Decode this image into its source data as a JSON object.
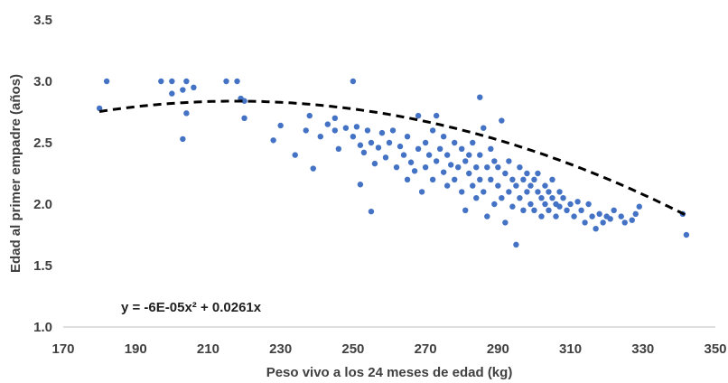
{
  "chart_data": {
    "type": "scatter",
    "xlabel": "Peso vivo a los 24 meses de edad (kg)",
    "ylabel": "Edad al primer empadre (años)",
    "xlim": [
      170,
      350
    ],
    "ylim": [
      1.0,
      3.5
    ],
    "xticks": [
      "170",
      "190",
      "210",
      "230",
      "250",
      "270",
      "290",
      "310",
      "330",
      "350"
    ],
    "yticks": [
      "1.0",
      "1.5",
      "2.0",
      "2.5",
      "3.0",
      "3.5"
    ],
    "grid": false,
    "point_color": "#4472C4",
    "trendline": {
      "equation_label": "y = -6E-05x² + 0.0261x",
      "a": -6e-05,
      "b": 0.0261,
      "x_range": [
        180,
        342
      ],
      "style": "dashed",
      "color": "#000000"
    },
    "series": [
      {
        "points": [
          [
            180,
            2.78
          ],
          [
            182,
            3.0
          ],
          [
            197,
            3.0
          ],
          [
            200,
            3.0
          ],
          [
            200,
            2.9
          ],
          [
            203,
            2.93
          ],
          [
            204,
            3.0
          ],
          [
            206,
            2.95
          ],
          [
            203,
            2.53
          ],
          [
            204,
            2.74
          ],
          [
            215,
            3.0
          ],
          [
            218,
            3.0
          ],
          [
            219,
            2.86
          ],
          [
            220,
            2.84
          ],
          [
            220,
            2.7
          ],
          [
            228,
            2.52
          ],
          [
            230,
            2.64
          ],
          [
            234,
            2.4
          ],
          [
            237,
            2.6
          ],
          [
            238,
            2.72
          ],
          [
            239,
            2.29
          ],
          [
            241,
            2.55
          ],
          [
            243,
            2.65
          ],
          [
            245,
            2.6
          ],
          [
            245,
            2.7
          ],
          [
            246,
            2.45
          ],
          [
            248,
            2.62
          ],
          [
            250,
            3.0
          ],
          [
            250,
            2.55
          ],
          [
            251,
            2.63
          ],
          [
            252,
            2.48
          ],
          [
            252,
            2.16
          ],
          [
            253,
            2.42
          ],
          [
            254,
            2.6
          ],
          [
            255,
            1.94
          ],
          [
            255,
            2.5
          ],
          [
            256,
            2.33
          ],
          [
            257,
            2.46
          ],
          [
            258,
            2.58
          ],
          [
            259,
            2.38
          ],
          [
            260,
            2.5
          ],
          [
            261,
            2.6
          ],
          [
            262,
            2.3
          ],
          [
            263,
            2.47
          ],
          [
            264,
            2.4
          ],
          [
            265,
            2.55
          ],
          [
            265,
            2.2
          ],
          [
            266,
            2.34
          ],
          [
            267,
            2.27
          ],
          [
            268,
            2.72
          ],
          [
            268,
            2.45
          ],
          [
            269,
            2.1
          ],
          [
            270,
            2.5
          ],
          [
            270,
            2.3
          ],
          [
            271,
            2.4
          ],
          [
            272,
            2.6
          ],
          [
            272,
            2.2
          ],
          [
            273,
            2.72
          ],
          [
            273,
            2.35
          ],
          [
            274,
            2.45
          ],
          [
            275,
            2.26
          ],
          [
            275,
            2.55
          ],
          [
            276,
            2.4
          ],
          [
            276,
            2.15
          ],
          [
            277,
            2.32
          ],
          [
            278,
            2.5
          ],
          [
            278,
            2.2
          ],
          [
            279,
            2.3
          ],
          [
            280,
            2.45
          ],
          [
            280,
            2.1
          ],
          [
            281,
            2.35
          ],
          [
            281,
            1.95
          ],
          [
            282,
            2.25
          ],
          [
            282,
            2.4
          ],
          [
            283,
            2.15
          ],
          [
            283,
            2.5
          ],
          [
            284,
            2.3
          ],
          [
            284,
            2.05
          ],
          [
            285,
            2.87
          ],
          [
            285,
            2.2
          ],
          [
            285,
            2.4
          ],
          [
            286,
            2.62
          ],
          [
            286,
            2.1
          ],
          [
            287,
            2.3
          ],
          [
            287,
            1.9
          ],
          [
            288,
            2.2
          ],
          [
            288,
            2.45
          ],
          [
            289,
            2.0
          ],
          [
            289,
            2.35
          ],
          [
            290,
            2.15
          ],
          [
            290,
            2.3
          ],
          [
            291,
            2.68
          ],
          [
            291,
            2.05
          ],
          [
            292,
            2.25
          ],
          [
            292,
            1.85
          ],
          [
            293,
            2.1
          ],
          [
            293,
            2.35
          ],
          [
            294,
            2.2
          ],
          [
            294,
            1.98
          ],
          [
            295,
            1.67
          ],
          [
            295,
            2.15
          ],
          [
            296,
            2.3
          ],
          [
            296,
            2.05
          ],
          [
            297,
            2.2
          ],
          [
            297,
            1.95
          ],
          [
            298,
            2.1
          ],
          [
            298,
            2.25
          ],
          [
            299,
            2.0
          ],
          [
            299,
            2.15
          ],
          [
            300,
            2.2
          ],
          [
            300,
            1.95
          ],
          [
            301,
            2.1
          ],
          [
            301,
            2.25
          ],
          [
            302,
            2.05
          ],
          [
            302,
            1.9
          ],
          [
            303,
            2.15
          ],
          [
            303,
            2.0
          ],
          [
            304,
            2.1
          ],
          [
            304,
            1.95
          ],
          [
            305,
            2.05
          ],
          [
            305,
            2.2
          ],
          [
            306,
            2.0
          ],
          [
            306,
            1.9
          ],
          [
            307,
            2.1
          ],
          [
            307,
            1.98
          ],
          [
            308,
            2.05
          ],
          [
            309,
            1.95
          ],
          [
            310,
            2.0
          ],
          [
            311,
            1.9
          ],
          [
            312,
            2.02
          ],
          [
            313,
            1.95
          ],
          [
            314,
            1.85
          ],
          [
            315,
            2.0
          ],
          [
            316,
            1.9
          ],
          [
            317,
            1.8
          ],
          [
            318,
            1.92
          ],
          [
            319,
            1.85
          ],
          [
            320,
            1.9
          ],
          [
            321,
            1.88
          ],
          [
            322,
            1.95
          ],
          [
            324,
            1.9
          ],
          [
            325,
            1.85
          ],
          [
            327,
            1.87
          ],
          [
            328,
            1.92
          ],
          [
            329,
            1.98
          ],
          [
            341,
            1.92
          ],
          [
            342,
            1.75
          ]
        ]
      }
    ]
  }
}
